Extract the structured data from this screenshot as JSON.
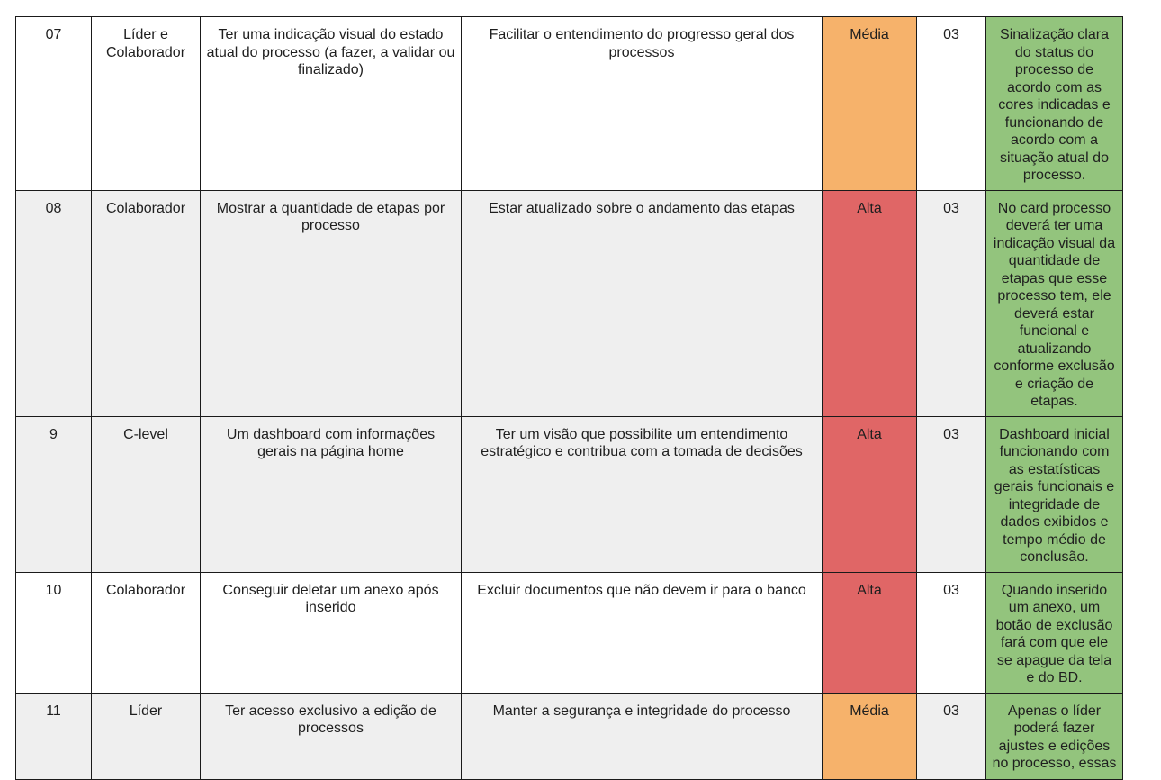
{
  "colors": {
    "media": "#f6b26b",
    "alta": "#e06666",
    "criteria": "#93c47d",
    "row_alt": "#efefef",
    "border": "#1a1a1a"
  },
  "rows": [
    {
      "id": "07",
      "actor": "Líder e Colaborador",
      "requirement": "Ter uma indicação visual do estado atual do processo (a fazer, a validar ou finalizado)",
      "goal": "Facilitar o entendimento do progresso geral dos processos",
      "priority": "Média",
      "points": "03",
      "criteria": "Sinalização clara do status do processo de acordo com as cores indicadas e funcionando de acordo com a situação atual do processo."
    },
    {
      "id": "08",
      "actor": "Colaborador",
      "requirement": "Mostrar a quantidade de etapas por processo",
      "goal": "Estar atualizado sobre o andamento das etapas",
      "priority": "Alta",
      "points": "03",
      "criteria": "No card processo deverá ter uma indicação visual da quantidade de etapas que esse processo tem, ele deverá estar funcional e atualizando conforme exclusão e criação de etapas."
    },
    {
      "id": "9",
      "actor": "C-level",
      "requirement": "Um dashboard com informações gerais na página home",
      "goal": "Ter um visão que possibilite um entendimento estratégico e contribua com a tomada de decisões",
      "priority": "Alta",
      "points": "03",
      "criteria": "Dashboard inicial funcionando com as estatísticas gerais funcionais e integridade de dados exibidos e tempo médio de conclusão."
    },
    {
      "id": "10",
      "actor": "Colaborador",
      "requirement": "Conseguir deletar um anexo após inserido",
      "goal": "Excluir documentos que não devem ir para o banco",
      "priority": "Alta",
      "points": "03",
      "criteria": "Quando inserido um anexo, um botão de exclusão fará com que ele se apague da tela e do BD."
    },
    {
      "id": "11",
      "actor": "Líder",
      "requirement": "Ter acesso exclusivo a edição de processos",
      "goal": "Manter a segurança e integridade do processo",
      "priority": "Média",
      "points": "03",
      "criteria": "Apenas o líder poderá fazer ajustes e edições no processo, essas"
    }
  ]
}
